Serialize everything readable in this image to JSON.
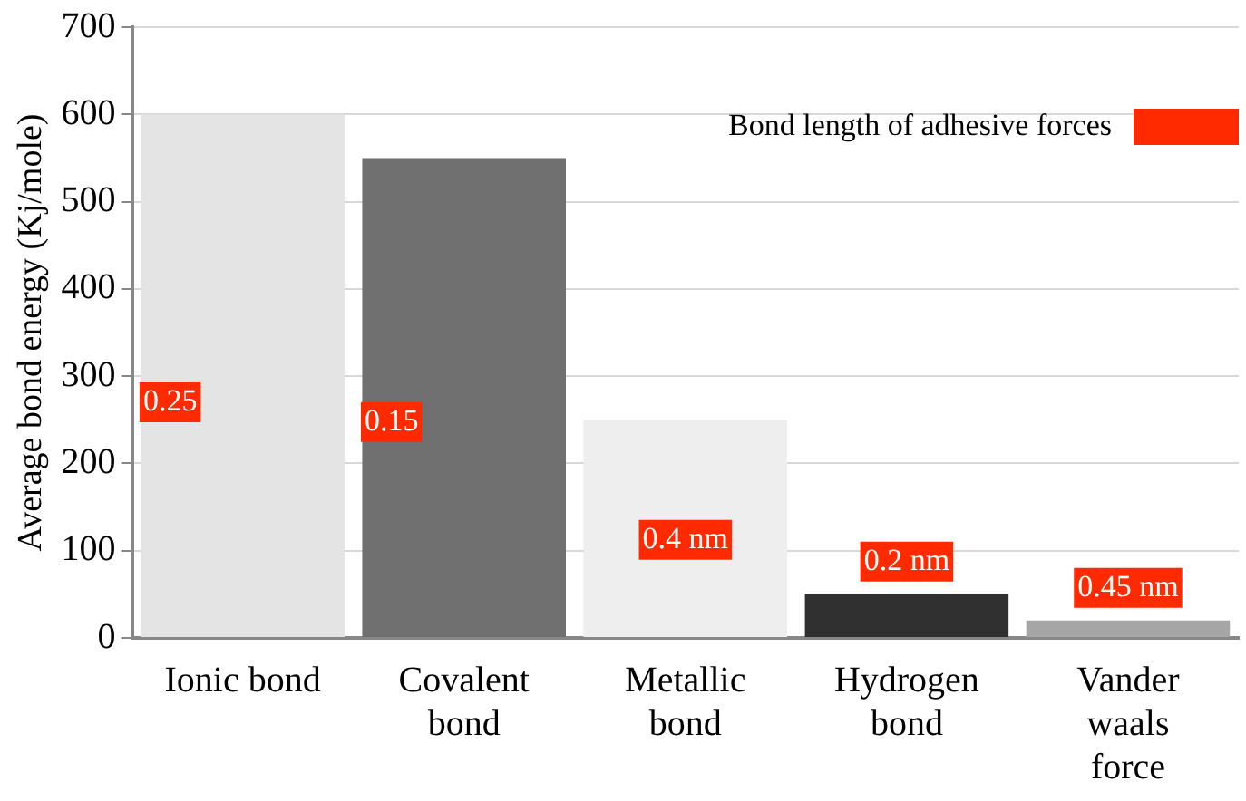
{
  "chart_data": {
    "type": "bar",
    "ylabel": "Average bond energy (Kj/mole)",
    "categories": [
      "Ionic bond",
      "Covalent bond",
      "Metallic bond",
      "Hydrogen bond",
      "Vander waals force"
    ],
    "values": [
      600,
      550,
      250,
      50,
      20
    ],
    "colors": [
      "#e4e4e4",
      "#707070",
      "#eeeeee",
      "#303030",
      "#a6a6a6"
    ],
    "ylim": [
      0,
      700
    ],
    "yticks": [
      0,
      100,
      200,
      300,
      400,
      500,
      600,
      700
    ],
    "grid": "y",
    "annotations": [
      "Bond length of adhesive forces",
      "0.25",
      "0.15",
      "0.4 nm",
      "0.2 nm",
      "0.45 nm"
    ]
  }
}
